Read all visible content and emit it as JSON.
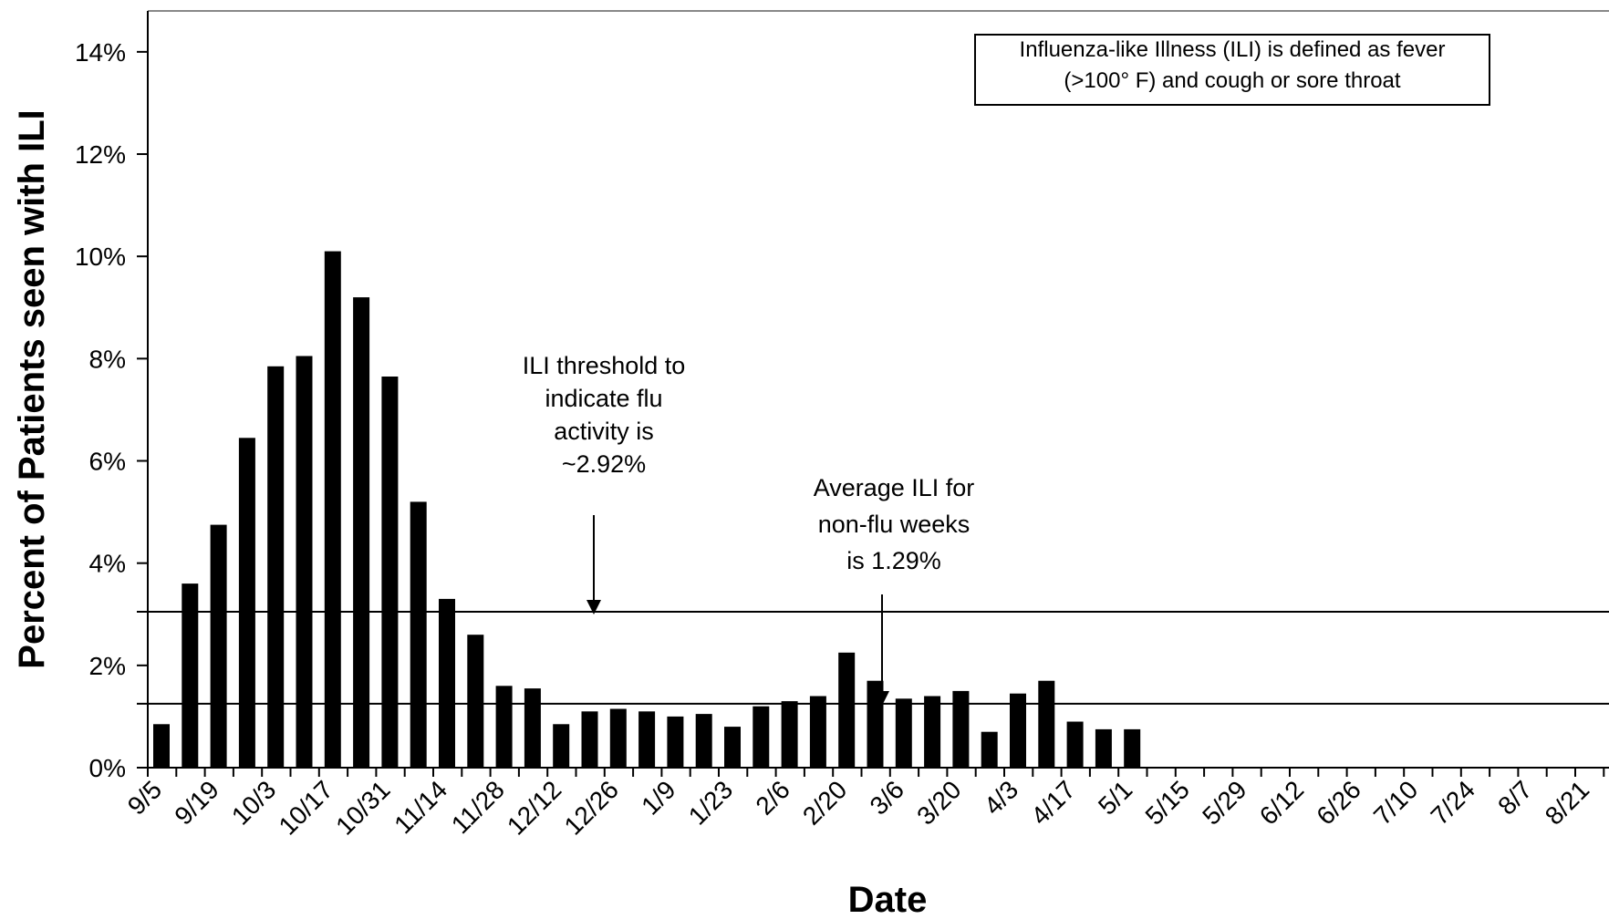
{
  "chart_data": {
    "type": "bar",
    "title": "",
    "xlabel": "Date",
    "ylabel": "Percent of Patients seen with ILI",
    "ylim": [
      0,
      14
    ],
    "y_ticks": [
      "0%",
      "2%",
      "4%",
      "6%",
      "8%",
      "10%",
      "12%",
      "14%"
    ],
    "x_tick_labels": [
      "9/5",
      "9/19",
      "10/3",
      "10/17",
      "10/31",
      "11/14",
      "11/28",
      "12/12",
      "12/26",
      "1/9",
      "1/23",
      "2/6",
      "2/20",
      "3/6",
      "3/20",
      "4/3",
      "4/17",
      "5/1",
      "5/15",
      "5/29",
      "6/12",
      "6/26",
      "7/10",
      "7/24",
      "8/7",
      "8/21"
    ],
    "values": [
      0.85,
      3.6,
      4.75,
      6.45,
      7.85,
      8.05,
      10.1,
      9.2,
      7.65,
      5.2,
      3.3,
      2.6,
      1.6,
      1.55,
      0.85,
      1.1,
      1.15,
      1.1,
      1.0,
      1.05,
      0.8,
      1.2,
      1.3,
      1.4,
      2.25,
      1.7,
      1.35,
      1.4,
      1.5,
      0.7,
      1.45,
      1.7,
      0.9,
      0.75,
      0.75
    ],
    "total_weeks": 52,
    "reference_lines": [
      {
        "value": 3.05,
        "label": "ILI threshold to indicate flu activity is ~2.92%"
      },
      {
        "value": 1.25,
        "label": "Average ILI for non-flu weeks is 1.29%"
      }
    ],
    "grid": false,
    "legend": "none"
  },
  "annotations": {
    "threshold": [
      "ILI threshold to",
      "indicate flu",
      "activity is",
      "~2.92%"
    ],
    "average": [
      "Average ILI for",
      "non-flu weeks",
      "is 1.29%"
    ],
    "definition": [
      "Influenza-like Illness (ILI) is defined as fever",
      "(>100° F) and cough or sore throat"
    ]
  },
  "colors": {
    "bar": "#000000",
    "axis": "#000000",
    "frame": "#888888"
  }
}
